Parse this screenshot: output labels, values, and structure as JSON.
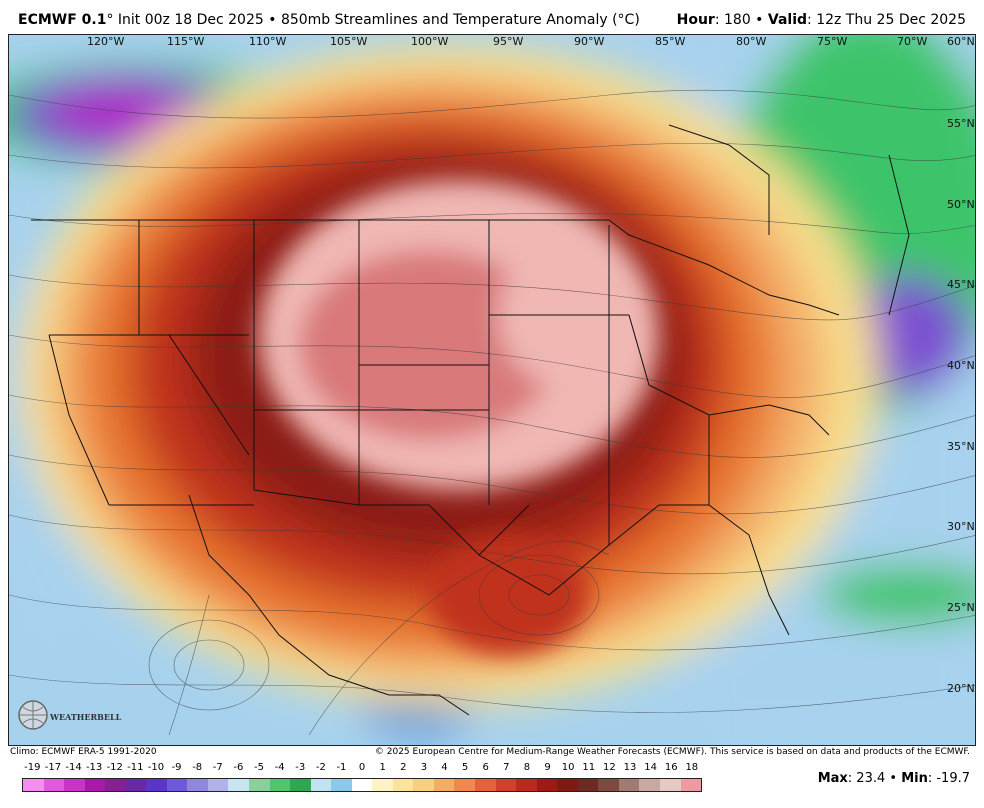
{
  "header": {
    "model": "ECMWF 0.1",
    "deg": "°",
    "init": " Init 00z 18 Dec 2025 • 850mb Streamlines and Temperature Anomaly (°C)",
    "hour_label": "Hour",
    "hour_value": ": 180 • ",
    "valid_label": "Valid",
    "valid_value": ": 12z Thu 25 Dec 2025"
  },
  "map": {
    "lon_labels": [
      "120°W",
      "115°W",
      "110°W",
      "105°W",
      "100°W",
      "95°W",
      "90°W",
      "85°W",
      "80°W",
      "75°W",
      "70°W",
      "60°N"
    ],
    "lat_labels": [
      "55°N",
      "50°N",
      "45°N",
      "40°N",
      "35°N",
      "30°N",
      "25°N",
      "20°N"
    ],
    "colors": {
      "warm_core": "#d9797a",
      "warm_pink": "#f0b7b3",
      "dark_red": "#8c1b12",
      "red": "#c0321f",
      "orange": "#e8742e",
      "light_orange": "#f4b06b",
      "yellow": "#f8e08e",
      "light_blue": "#a7d2ee",
      "blue": "#4a8ed6",
      "green": "#3dc46a",
      "purple": "#7c4fd1",
      "magenta": "#b01cc9"
    }
  },
  "footer": {
    "climo": "Climo: ECMWF ERA-5 1991-2020",
    "copyright": "© 2025 European Centre for Medium-Range Weather Forecasts (ECMWF). This service is based on data and products of the ECMWF."
  },
  "scale": {
    "labels": [
      "-19",
      "-17",
      "-14",
      "-13",
      "-12",
      "-11",
      "-10",
      "-9",
      "-8",
      "-7",
      "-6",
      "-5",
      "-4",
      "-3",
      "-2",
      "-1",
      "0",
      "1",
      "2",
      "3",
      "4",
      "5",
      "6",
      "7",
      "8",
      "9",
      "10",
      "11",
      "12",
      "13",
      "14",
      "16",
      "18"
    ],
    "colors": [
      "#f58ef0",
      "#e05ae0",
      "#c734c8",
      "#a51aa8",
      "#862094",
      "#6a28a8",
      "#5936c4",
      "#6e5ad8",
      "#8f86e0",
      "#b2b2ea",
      "#c8e6f2",
      "#8ad09a",
      "#4ec66a",
      "#2ea84e",
      "#bfe3f2",
      "#8cc8ec",
      "#ffffff",
      "#fff3c4",
      "#fbe49a",
      "#f8cf7e",
      "#f3ad62",
      "#ee8a4c",
      "#e2643a",
      "#cf4128",
      "#b82a1c",
      "#9a1c12",
      "#7f1a12",
      "#6e2a22",
      "#7e4a40",
      "#a07b72",
      "#c9a8a2",
      "#e6c8c4",
      "#ee9aa0"
    ]
  },
  "stats": {
    "max_label": "Max",
    "max_value": ": 23.4 • ",
    "min_label": "Min",
    "min_value": ": -19.7"
  },
  "logo": {
    "text": "WEATHERBELL"
  }
}
